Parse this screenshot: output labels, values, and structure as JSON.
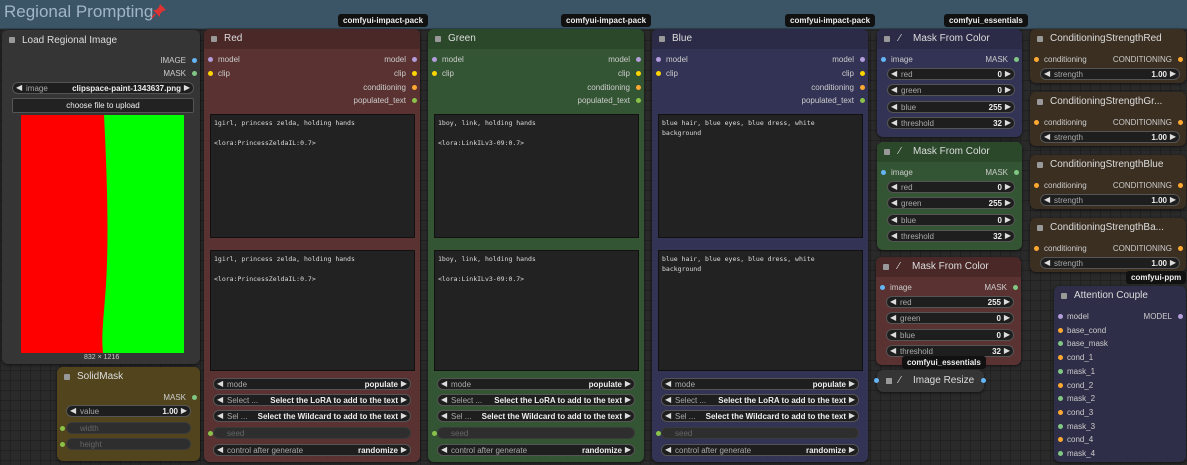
{
  "group": {
    "title": "Regional Prompting"
  },
  "badges": {
    "impact1": "comfyui-impact-pack",
    "impact2": "comfyui-impact-pack",
    "impact3": "comfyui-impact-pack",
    "essentials1": "comfyui_essentials",
    "essentials2": "comfyui_essentials",
    "ppm": "comfyui-ppm"
  },
  "load": {
    "title": "Load Regional Image",
    "out_image": "IMAGE",
    "out_mask": "MASK",
    "image_label": "image",
    "image_value": "clipspace-paint-1343637.png",
    "upload": "choose file to upload",
    "dims": "832 × 1216"
  },
  "solidmask": {
    "title": "SolidMask",
    "out_mask": "MASK",
    "value_label": "value",
    "value": "1.00",
    "width_label": "width",
    "height_label": "height"
  },
  "prompts": [
    {
      "title": "Red",
      "text1": "1girl, princess zelda, holding hands\n\n<lora:PrincessZeldaIL:0.7>",
      "text2": "1girl, princess zelda, holding hands\n\n<lora:PrincessZeldaIL:0.7>",
      "accent": "#5a3232"
    },
    {
      "title": "Green",
      "text1": "1boy, link, holding hands\n\n<lora:LinkILv3-09:0.7>",
      "text2": "1boy, link, holding hands\n\n<lora:LinkILv3-09:0.7>",
      "accent": "#335533"
    },
    {
      "title": "Blue",
      "text1": "blue hair, blue eyes, blue dress, white\nbackground",
      "text2": "blue hair, blue eyes, blue dress, white\nbackground",
      "accent": "#333355"
    }
  ],
  "prompt_common": {
    "in_model": "model",
    "in_clip": "clip",
    "out_model": "model",
    "out_clip": "clip",
    "out_cond": "conditioning",
    "out_pop": "populated_text",
    "mode_label": "mode",
    "mode_value": "populate",
    "lora_label": "Select ...",
    "lora_value": "Select the LoRA to add to the text",
    "wild_label": "Sel ...",
    "wild_value": "Select the Wildcard to add to the text",
    "seed_label": "seed",
    "cag_label": "control after generate",
    "cag_value": "randomize"
  },
  "masks": [
    {
      "title": "Mask From Color",
      "in_image": "image",
      "out_mask": "MASK",
      "red": "0",
      "green": "0",
      "blue": "255",
      "threshold": "32"
    },
    {
      "title": "Mask From Color",
      "in_image": "image",
      "out_mask": "MASK",
      "red": "0",
      "green": "255",
      "blue": "0",
      "threshold": "32"
    },
    {
      "title": "Mask From Color",
      "in_image": "image",
      "out_mask": "MASK",
      "red": "255",
      "green": "0",
      "blue": "0",
      "threshold": "32"
    }
  ],
  "mask_labels": {
    "red": "red",
    "green": "green",
    "blue": "blue",
    "threshold": "threshold"
  },
  "resize": {
    "title": "Image Resize"
  },
  "cstrength": [
    {
      "title": "ConditioningStrengthRed"
    },
    {
      "title": "ConditioningStrengthGr..."
    },
    {
      "title": "ConditioningStrengthBlue"
    },
    {
      "title": "ConditioningStrengthBa..."
    }
  ],
  "cs_common": {
    "in_cond": "conditioning",
    "out_cond": "CONDITIONING",
    "strength_label": "strength",
    "strength_value": "1.00"
  },
  "attention": {
    "title": "Attention Couple",
    "out": "MODEL",
    "inputs": [
      "model",
      "base_cond",
      "base_mask",
      "cond_1",
      "mask_1",
      "cond_2",
      "mask_2",
      "cond_3",
      "mask_3",
      "cond_4",
      "mask_4"
    ]
  },
  "colors": {
    "red_node": "#5a3232",
    "green_node": "#335533",
    "blue_node": "#333355",
    "mask_node_blue": "#333355",
    "mask_node_green": "#335533",
    "mask_node_red": "#5a3232",
    "cs_node": "#3b2f22",
    "attention_node": "#2e2e48"
  }
}
